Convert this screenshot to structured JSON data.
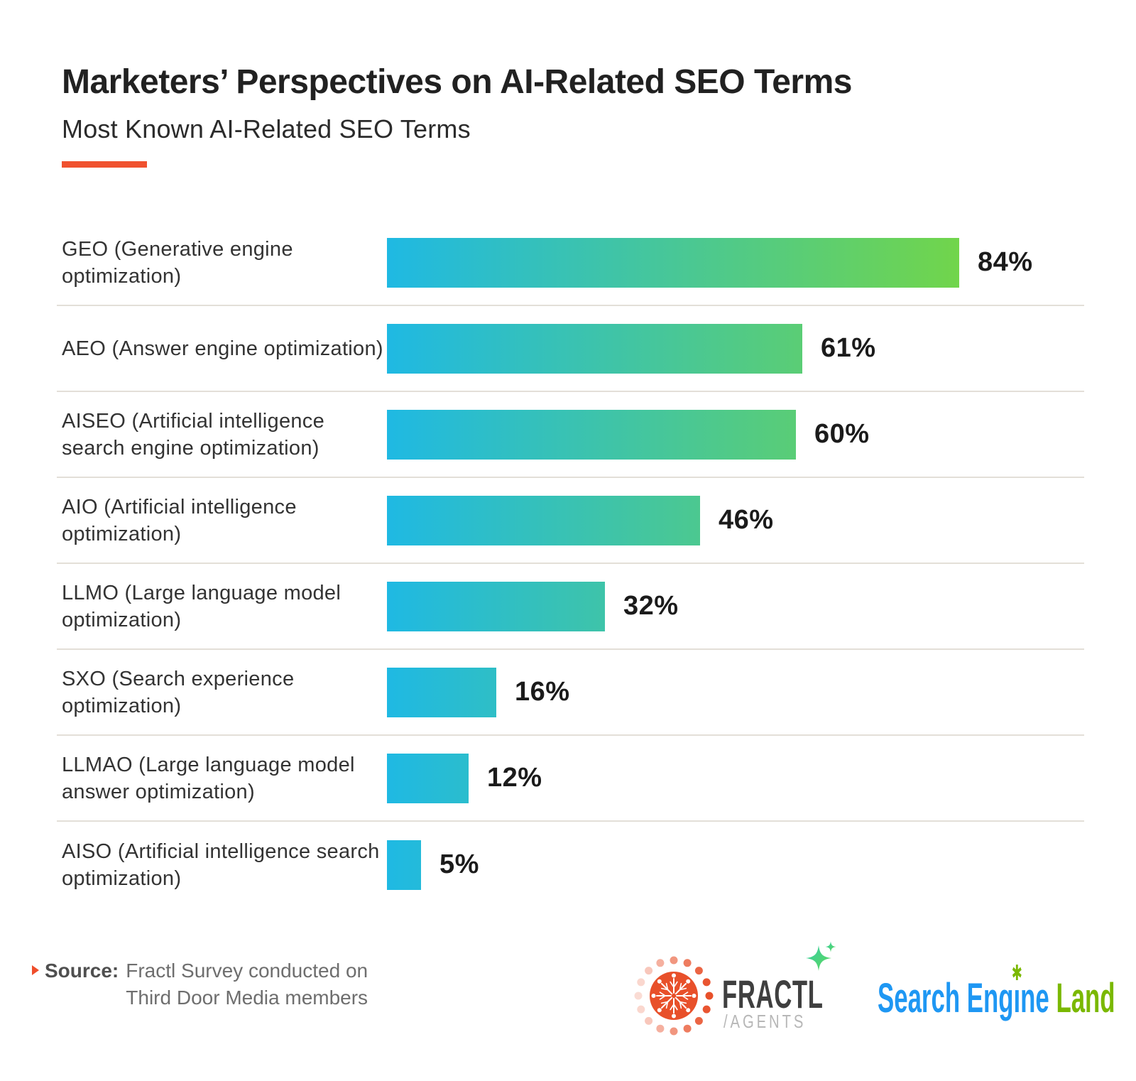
{
  "header": {
    "title": "Marketers’ Perspectives on AI-Related SEO Terms",
    "subtitle": "Most Known AI-Related SEO Terms",
    "accent_color": "#f0512f"
  },
  "chart_data": {
    "type": "bar",
    "orientation": "horizontal",
    "title": "Most Known AI-Related SEO Terms",
    "unit": "%",
    "categories": [
      "GEO (Generative engine optimization)",
      "AEO (Answer engine optimization)",
      "AISEO (Artificial intelligence search engine optimization)",
      "AIO (Artificial intelligence optimization)",
      "LLMO (Large language model optimization)",
      "SXO (Search experience optimization)",
      "LLMAO (Large language model answer optimization)",
      "AISO (Artificial intelligence search optimization)"
    ],
    "values": [
      84,
      61,
      60,
      46,
      32,
      16,
      12,
      5
    ],
    "value_labels": [
      "84%",
      "61%",
      "60%",
      "46%",
      "32%",
      "16%",
      "12%",
      "5%"
    ],
    "xlim": [
      0,
      84
    ],
    "grid": false,
    "legend": "none",
    "bar_gradient": [
      "#1fb9e3",
      "#71d54b"
    ]
  },
  "footer": {
    "source_label": "Source:",
    "source_line1": "Fractl Survey conducted on",
    "source_line2": "Third Door Media members",
    "fractl_logo": {
      "name": "FRACTL",
      "sub": "/AGENTS",
      "brand_orange": "#e8502a",
      "sparkle_teal": "#35cfa6",
      "sparkle_green": "#5fd75a"
    },
    "sel_logo": {
      "pre": "Search Eng",
      "dot_letter": "ı",
      "post": "ne ",
      "land": "Land",
      "blue": "#1e97f3",
      "green": "#7ab800"
    }
  }
}
